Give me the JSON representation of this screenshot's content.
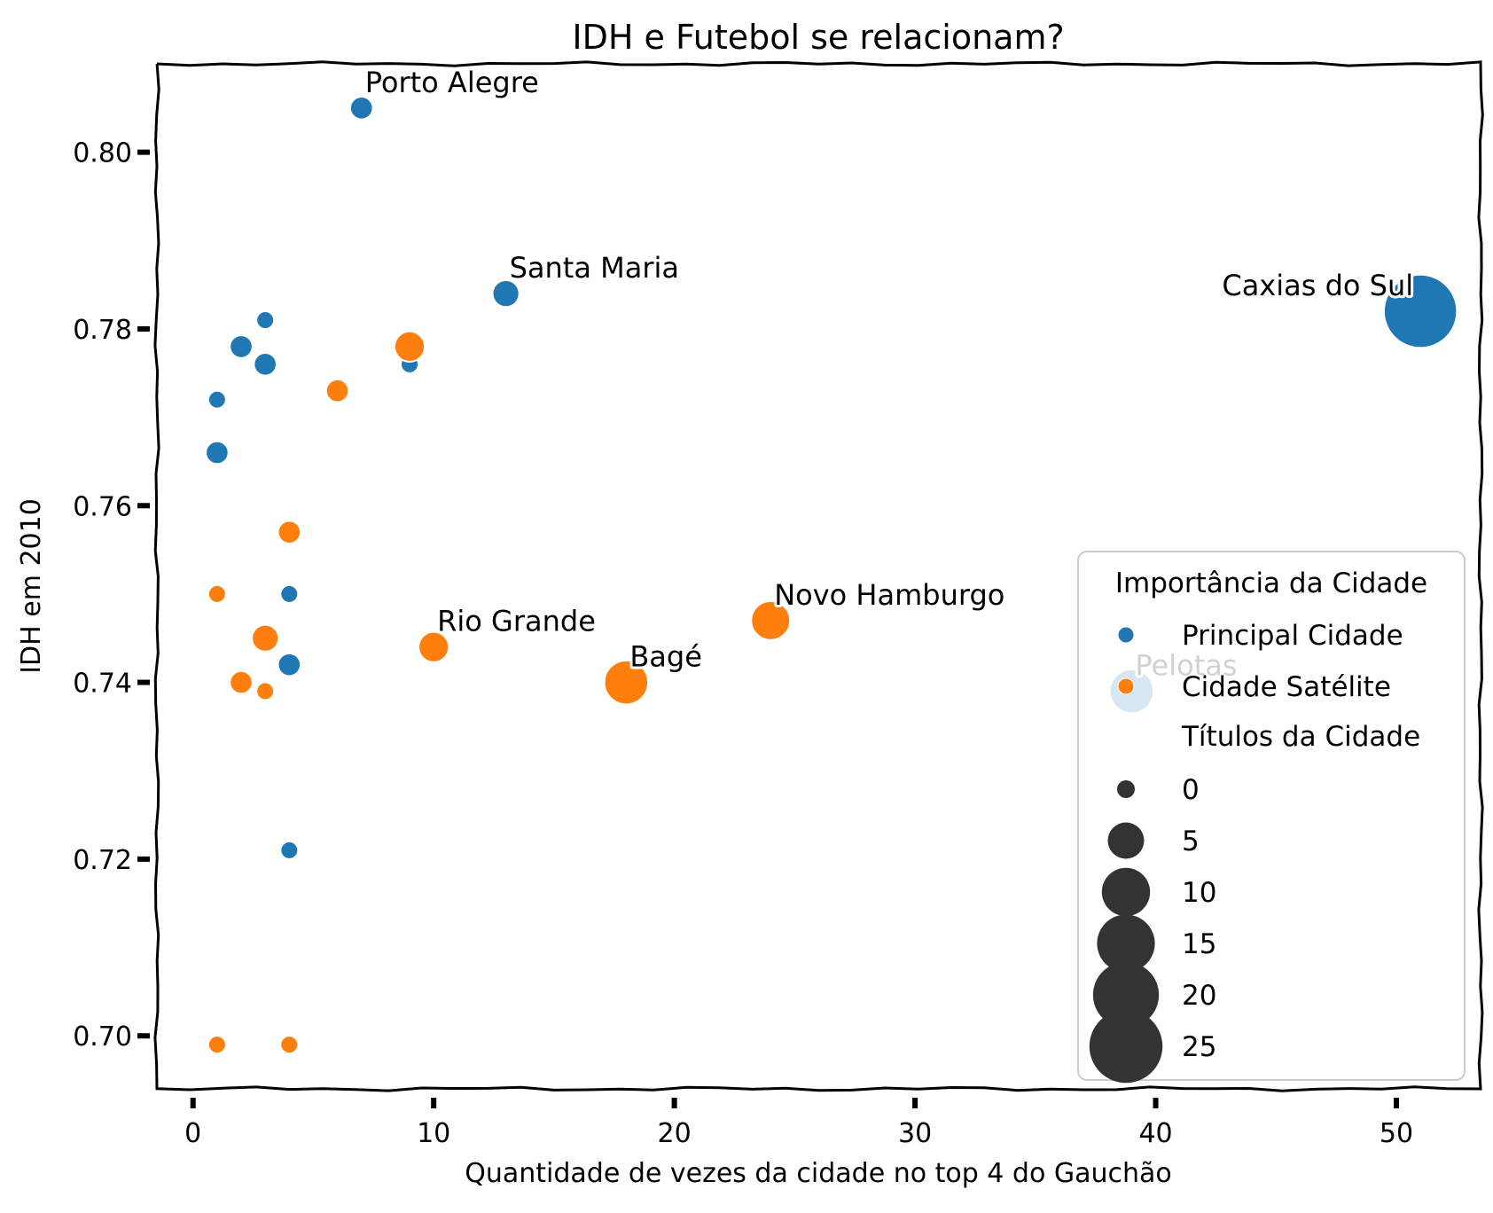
{
  "chart_data": {
    "type": "scatter",
    "title": "IDH e Futebol se relacionam?",
    "xlabel": "Quantidade de vezes da cidade no top 4 do Gauchão",
    "ylabel": "IDH em 2010",
    "xlim": [
      -1.5,
      53.5
    ],
    "ylim": [
      0.694,
      0.81
    ],
    "xticks": [
      0,
      10,
      20,
      30,
      40,
      50
    ],
    "yticks": [
      0.7,
      0.72,
      0.74,
      0.76,
      0.78,
      0.8
    ],
    "xtick_labels": [
      "0",
      "10",
      "20",
      "30",
      "40",
      "50"
    ],
    "ytick_labels": [
      "0.70",
      "0.72",
      "0.74",
      "0.76",
      "0.78",
      "0.80"
    ],
    "grid": false,
    "legend": {
      "placement": "lower right",
      "hue_title": "Importância da Cidade",
      "hue_entries": [
        {
          "label": "Principal Cidade",
          "color": "#1f77b4"
        },
        {
          "label": "Cidade Satélite",
          "color": "#ff7f0e"
        }
      ],
      "size_title": "Títulos da Cidade",
      "size_entries": [
        {
          "label": "0",
          "value": 0
        },
        {
          "label": "5",
          "value": 5
        },
        {
          "label": "10",
          "value": 10
        },
        {
          "label": "15",
          "value": 15
        },
        {
          "label": "20",
          "value": 20
        },
        {
          "label": "25",
          "value": 25
        }
      ]
    },
    "series": [
      {
        "name": "Principal Cidade",
        "color": "#1f77b4",
        "points": [
          {
            "x": 7,
            "y": 0.805,
            "titles": 1,
            "label": "Porto Alegre"
          },
          {
            "x": 13,
            "y": 0.784,
            "titles": 2,
            "label": "Santa Maria"
          },
          {
            "x": 51,
            "y": 0.782,
            "titles": 25,
            "label": "Caxias do Sul"
          },
          {
            "x": 39,
            "y": 0.739,
            "titles": 8,
            "label": "Pelotas"
          },
          {
            "x": 3,
            "y": 0.781,
            "titles": 0
          },
          {
            "x": 2,
            "y": 0.778,
            "titles": 1
          },
          {
            "x": 3,
            "y": 0.776,
            "titles": 1
          },
          {
            "x": 9,
            "y": 0.776,
            "titles": 0
          },
          {
            "x": 1,
            "y": 0.772,
            "titles": 0
          },
          {
            "x": 1,
            "y": 0.766,
            "titles": 1
          },
          {
            "x": 4,
            "y": 0.75,
            "titles": 0
          },
          {
            "x": 4,
            "y": 0.742,
            "titles": 1
          },
          {
            "x": 4,
            "y": 0.721,
            "titles": 0
          }
        ]
      },
      {
        "name": "Cidade Satélite",
        "color": "#ff7f0e",
        "points": [
          {
            "x": 24,
            "y": 0.747,
            "titles": 6,
            "label": "Novo Hamburgo"
          },
          {
            "x": 18,
            "y": 0.74,
            "titles": 8,
            "label": "Bagé"
          },
          {
            "x": 10,
            "y": 0.744,
            "titles": 3,
            "label": "Rio Grande"
          },
          {
            "x": 9,
            "y": 0.778,
            "titles": 3
          },
          {
            "x": 6,
            "y": 0.773,
            "titles": 1
          },
          {
            "x": 4,
            "y": 0.757,
            "titles": 1
          },
          {
            "x": 1,
            "y": 0.75,
            "titles": 0
          },
          {
            "x": 3,
            "y": 0.745,
            "titles": 2
          },
          {
            "x": 2,
            "y": 0.74,
            "titles": 1
          },
          {
            "x": 3,
            "y": 0.739,
            "titles": 0
          },
          {
            "x": 1,
            "y": 0.699,
            "titles": 0
          },
          {
            "x": 4,
            "y": 0.699,
            "titles": 0
          }
        ]
      }
    ]
  }
}
